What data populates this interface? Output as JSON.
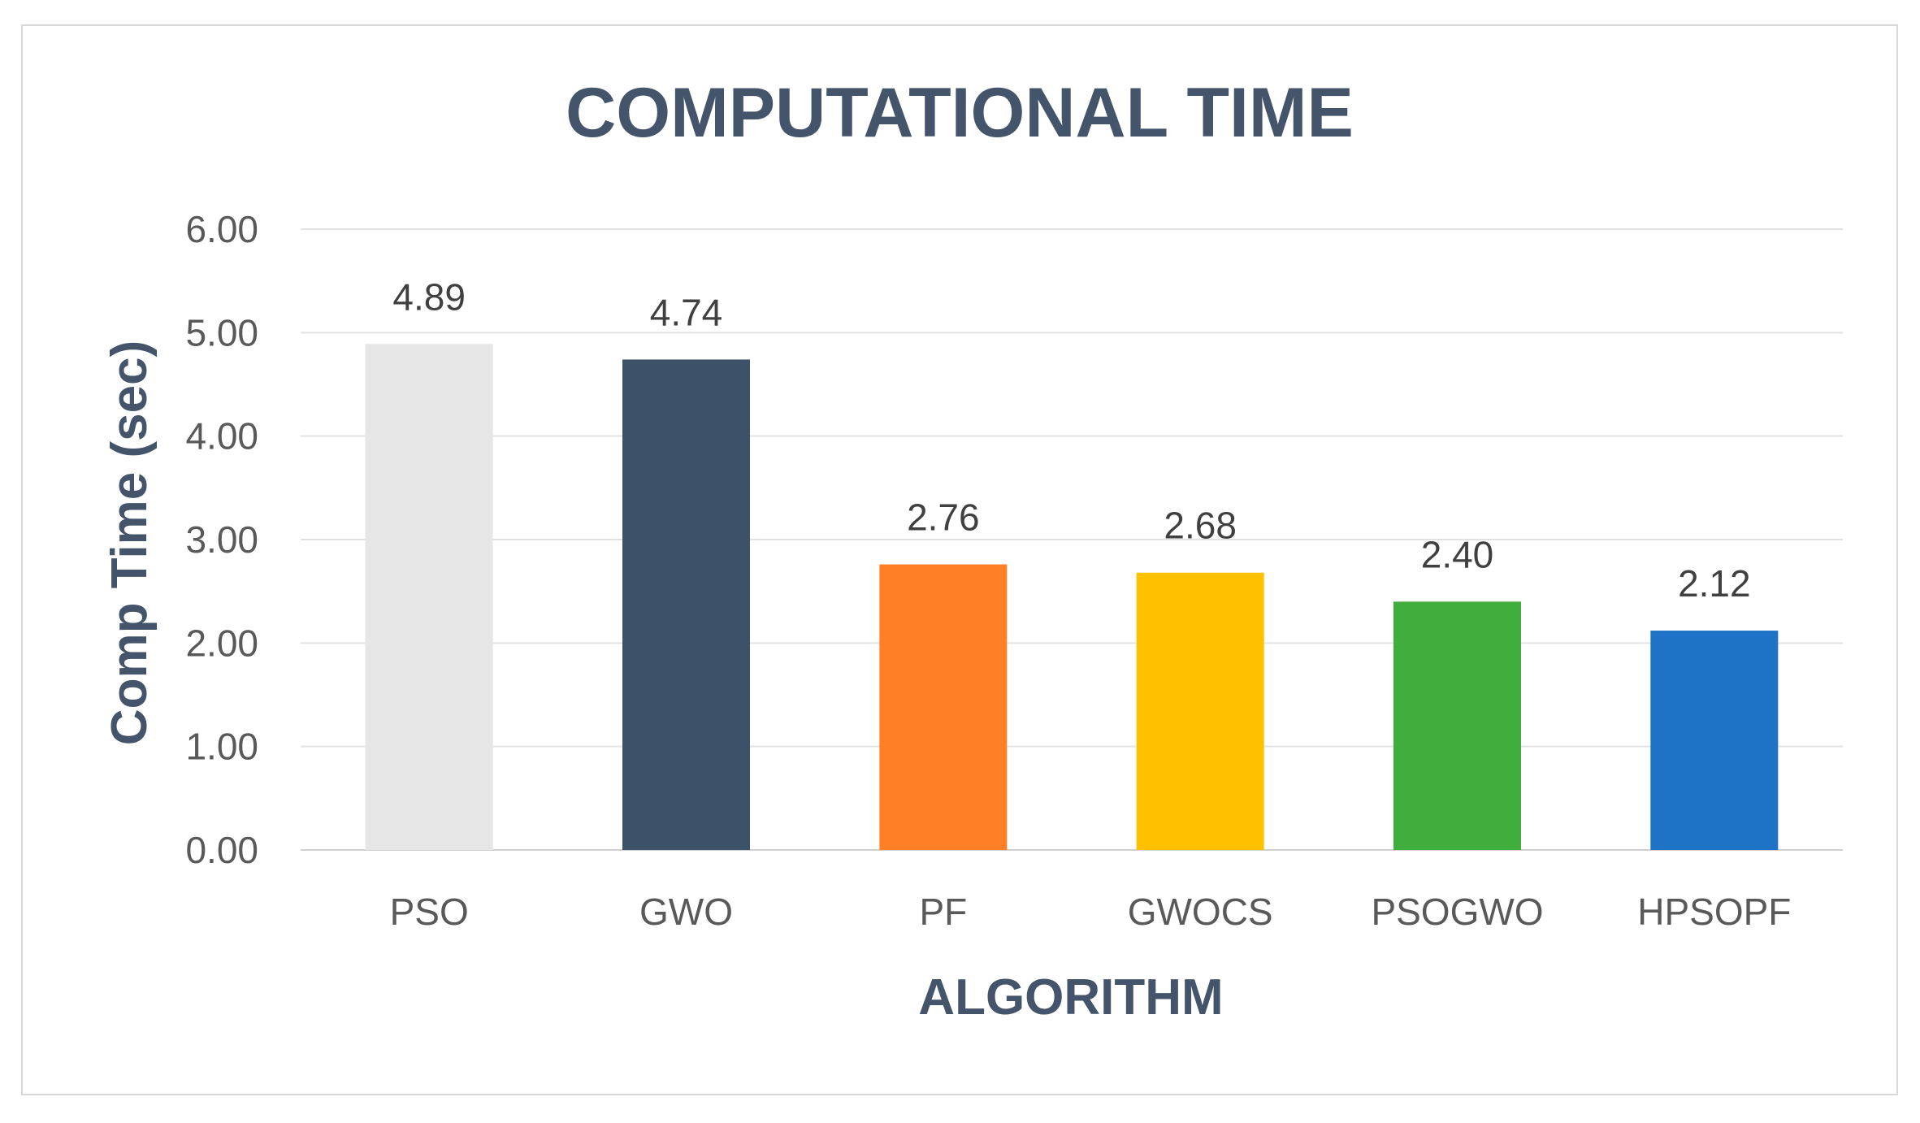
{
  "chart_data": {
    "type": "bar",
    "title": "COMPUTATIONAL TIME",
    "xlabel": "ALGORITHM",
    "ylabel": "Comp Time (sec)",
    "categories": [
      "PSO",
      "GWO",
      "PF",
      "GWOCS",
      "PSOGWO",
      "HPSOPF"
    ],
    "values": [
      4.89,
      4.74,
      2.76,
      2.68,
      2.4,
      2.12
    ],
    "value_labels": [
      "4.89",
      "4.74",
      "2.76",
      "2.68",
      "2.40",
      "2.12"
    ],
    "colors": [
      "#e7e6e6",
      "#3c5269",
      "#ff7f27",
      "#ffc000",
      "#3fae3c",
      "#1f73c7"
    ],
    "ylim": [
      0,
      6
    ],
    "yticks": [
      "0.00",
      "1.00",
      "2.00",
      "3.00",
      "4.00",
      "5.00",
      "6.00"
    ],
    "grid": true,
    "legend": "none"
  }
}
